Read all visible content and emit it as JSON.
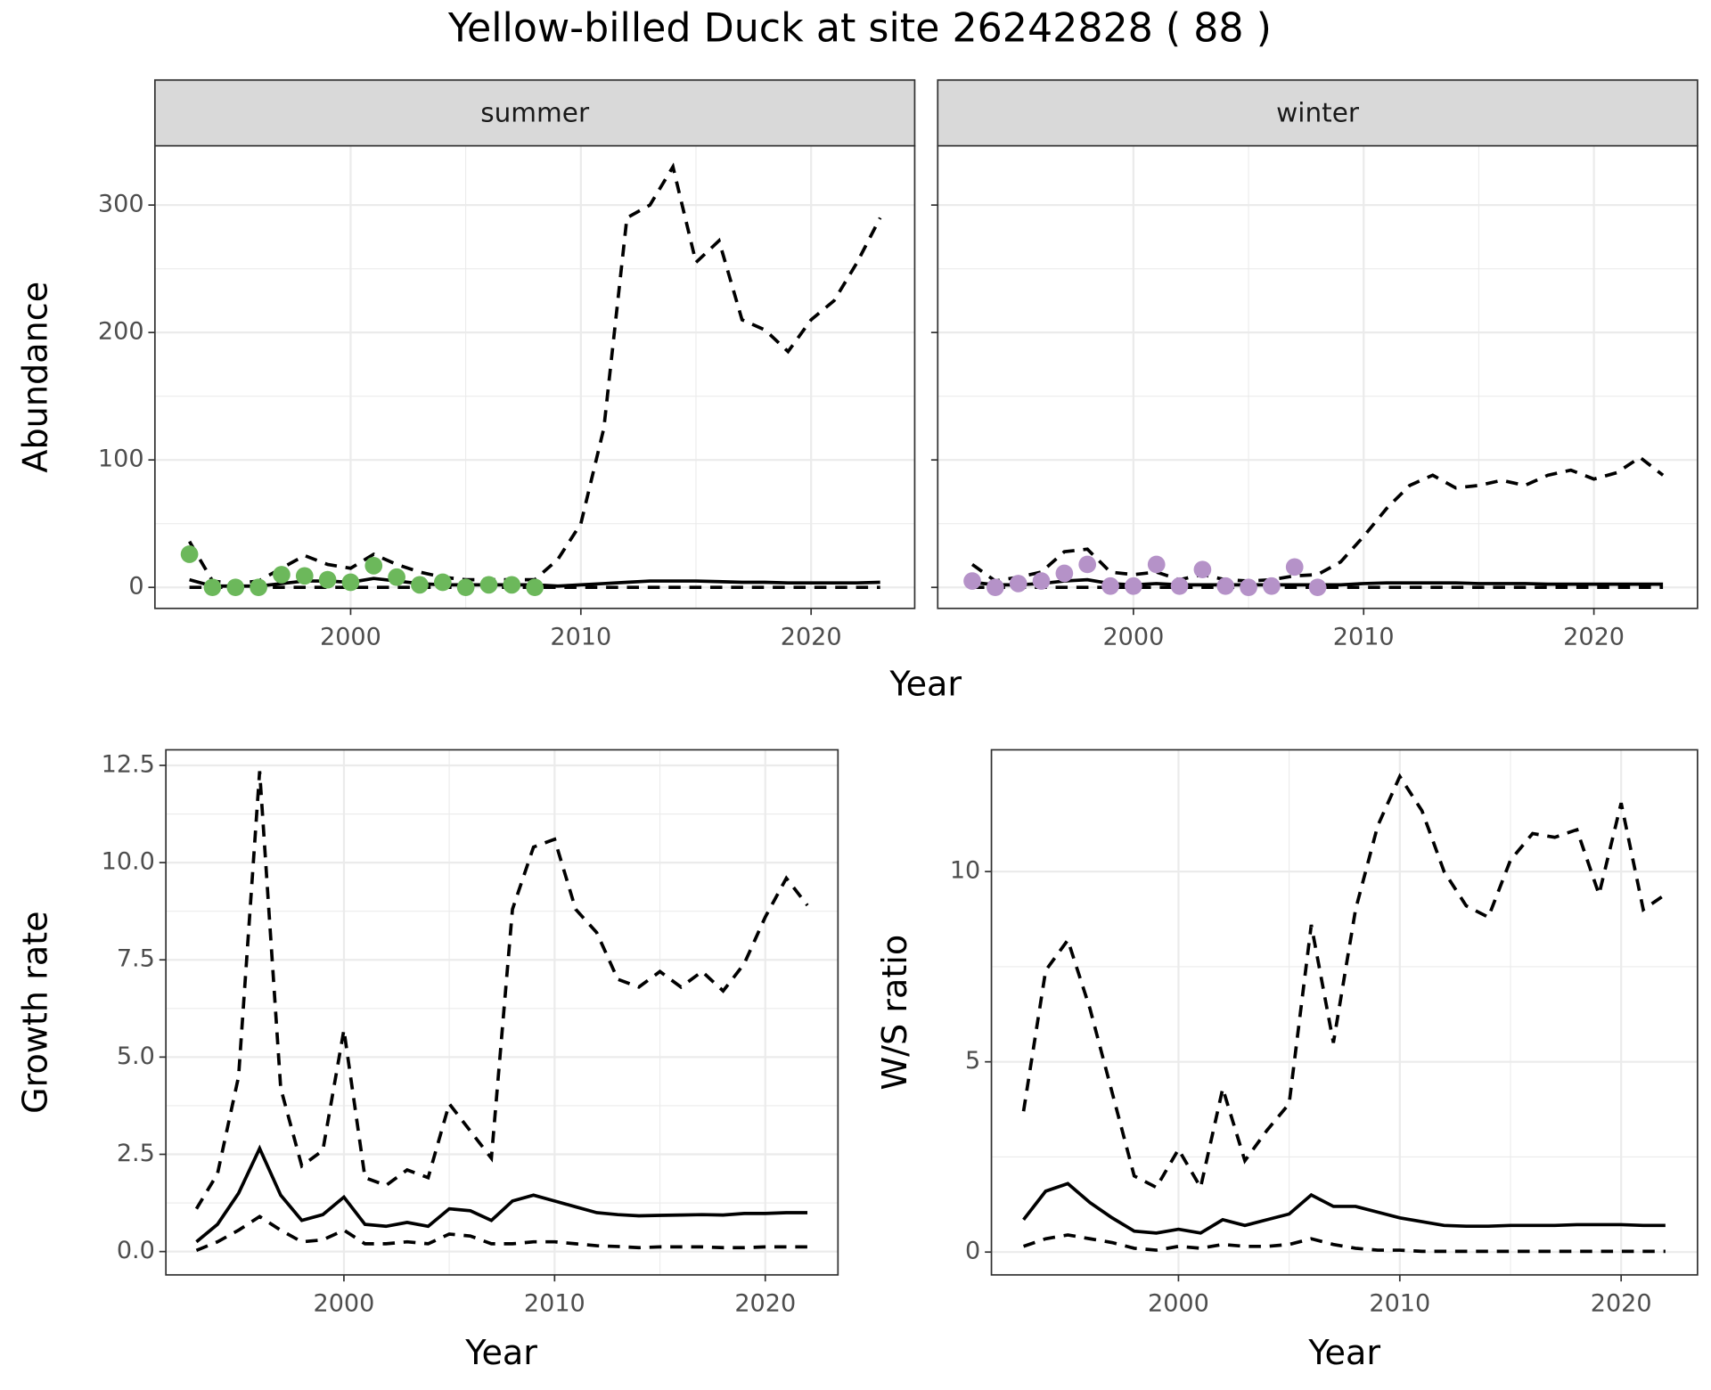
{
  "title": "Yellow-billed Duck at site 26242828 ( 88 )",
  "chart_data": [
    {
      "type": "line",
      "facet": "summer",
      "ylabel": "Abundance",
      "xlabel": "Year",
      "x": [
        1993,
        1994,
        1995,
        1996,
        1997,
        1998,
        1999,
        2000,
        2001,
        2002,
        2003,
        2004,
        2005,
        2006,
        2007,
        2008,
        2009,
        2010,
        2011,
        2012,
        2013,
        2014,
        2015,
        2016,
        2017,
        2018,
        2019,
        2020,
        2021,
        2022,
        2023
      ],
      "xlim": [
        1991.5,
        2024.5
      ],
      "xticks": [
        2000,
        2010,
        2020
      ],
      "ylim": [
        -16.5,
        346.5
      ],
      "yticks": [
        0,
        100,
        200,
        300
      ],
      "grid": true,
      "minor_grid": true,
      "series": [
        {
          "style": "dashed",
          "color": "#000000",
          "values": [
            36,
            5,
            3,
            5,
            15,
            25,
            18,
            15,
            26,
            18,
            12,
            8,
            6,
            6,
            6,
            6,
            22,
            50,
            125,
            290,
            300,
            330,
            255,
            272,
            210,
            202,
            185,
            210,
            225,
            255,
            290
          ]
        },
        {
          "style": "solid",
          "color": "#000000",
          "values": [
            6,
            1,
            1,
            1,
            3,
            5,
            5,
            4,
            7,
            5,
            3,
            2,
            2,
            2,
            2,
            2,
            1,
            2,
            3,
            4,
            5,
            5,
            5,
            4.5,
            4,
            4,
            3.5,
            3.5,
            3.5,
            3.5,
            4
          ]
        },
        {
          "style": "dashed",
          "color": "#000000",
          "values": [
            0,
            0,
            0,
            0,
            0,
            0,
            0,
            0,
            0,
            0,
            0,
            0,
            0,
            0,
            0,
            0,
            0,
            0,
            0,
            0,
            0,
            0,
            0,
            0,
            0,
            0,
            0,
            0,
            0,
            0,
            0
          ]
        },
        {
          "type": "scatter",
          "color": "#6cb85b",
          "x": [
            1993,
            1994,
            1995,
            1996,
            1997,
            1998,
            1999,
            2000,
            2001,
            2002,
            2003,
            2004,
            2005,
            2006,
            2007,
            2008
          ],
          "values": [
            26,
            0,
            0,
            0,
            10,
            9,
            6,
            4,
            17,
            8,
            2,
            4,
            0,
            2,
            2,
            0
          ]
        }
      ]
    },
    {
      "type": "line",
      "facet": "winter",
      "x": [
        1993,
        1994,
        1995,
        1996,
        1997,
        1998,
        1999,
        2000,
        2001,
        2002,
        2003,
        2004,
        2005,
        2006,
        2007,
        2008,
        2009,
        2010,
        2011,
        2012,
        2013,
        2014,
        2015,
        2016,
        2017,
        2018,
        2019,
        2020,
        2021,
        2022,
        2023
      ],
      "xlim": [
        1991.5,
        2024.5
      ],
      "xticks": [
        2000,
        2010,
        2020
      ],
      "ylim": [
        -16.5,
        346.5
      ],
      "yticks": [
        0,
        100,
        200,
        300
      ],
      "grid": true,
      "minor_grid": true,
      "series": [
        {
          "style": "dashed",
          "color": "#000000",
          "values": [
            18,
            5,
            8,
            12,
            28,
            30,
            12,
            10,
            12,
            6,
            10,
            6,
            5,
            6,
            9,
            10,
            20,
            40,
            62,
            80,
            88,
            78,
            80,
            84,
            80,
            88,
            92,
            85,
            90,
            102,
            88
          ]
        },
        {
          "style": "solid",
          "color": "#000000",
          "values": [
            4,
            2,
            2,
            3,
            5,
            6,
            3,
            2,
            3,
            2,
            2,
            2,
            2,
            2,
            2,
            2,
            2,
            3,
            3.5,
            3.5,
            3.5,
            3.5,
            3,
            3,
            3,
            2.5,
            2.5,
            2.5,
            2.5,
            2.5,
            2.5
          ]
        },
        {
          "style": "dashed",
          "color": "#000000",
          "values": [
            0,
            0,
            0,
            0,
            0,
            0,
            0,
            0,
            0,
            0,
            0,
            0,
            0,
            0,
            0,
            0,
            0,
            0,
            0,
            0,
            0,
            0,
            0,
            0,
            0,
            0,
            0,
            0,
            0,
            0,
            0
          ]
        },
        {
          "type": "scatter",
          "color": "#b592c8",
          "x": [
            1993,
            1994,
            1995,
            1996,
            1997,
            1998,
            1999,
            2000,
            2001,
            2002,
            2003,
            2004,
            2005,
            2006,
            2007,
            2008
          ],
          "values": [
            5,
            0,
            3,
            5,
            11,
            18,
            1,
            1,
            18,
            1,
            14,
            1,
            0,
            1,
            16,
            0
          ]
        }
      ]
    },
    {
      "type": "line",
      "ylabel": "Growth rate",
      "xlabel": "Year",
      "x": [
        1993,
        1994,
        1995,
        1996,
        1997,
        1998,
        1999,
        2000,
        2001,
        2002,
        2003,
        2004,
        2005,
        2006,
        2007,
        2008,
        2009,
        2010,
        2011,
        2012,
        2013,
        2014,
        2015,
        2016,
        2017,
        2018,
        2019,
        2020,
        2021,
        2022
      ],
      "xlim": [
        1991.55,
        2023.45
      ],
      "xticks": [
        2000,
        2010,
        2020
      ],
      "ylim": [
        -0.6,
        12.9
      ],
      "yticks": [
        {
          "value": 0,
          "label": "0.0"
        },
        2.5,
        {
          "value": 5,
          "label": "5.0"
        },
        7.5,
        {
          "value": 10,
          "label": "10.0"
        },
        12.5
      ],
      "grid": true,
      "minor_grid": true,
      "series": [
        {
          "style": "dashed",
          "color": "#000000",
          "values": [
            1.1,
            2.0,
            4.5,
            12.35,
            4.2,
            2.2,
            2.6,
            5.7,
            1.9,
            1.7,
            2.1,
            1.9,
            3.8,
            3.1,
            2.4,
            8.8,
            10.4,
            10.6,
            8.8,
            8.2,
            7.0,
            6.8,
            7.2,
            6.8,
            7.2,
            6.7,
            7.4,
            8.6,
            9.6,
            8.9
          ]
        },
        {
          "style": "solid",
          "color": "#000000",
          "values": [
            0.25,
            0.7,
            1.5,
            2.65,
            1.45,
            0.8,
            0.95,
            1.4,
            0.7,
            0.65,
            0.75,
            0.65,
            1.1,
            1.05,
            0.8,
            1.3,
            1.45,
            1.3,
            1.15,
            1.0,
            0.95,
            0.92,
            0.93,
            0.94,
            0.95,
            0.94,
            0.98,
            0.98,
            1.0,
            1.0
          ]
        },
        {
          "style": "dashed",
          "color": "#000000",
          "values": [
            0.03,
            0.25,
            0.55,
            0.9,
            0.55,
            0.25,
            0.3,
            0.55,
            0.2,
            0.2,
            0.25,
            0.2,
            0.45,
            0.4,
            0.2,
            0.2,
            0.25,
            0.25,
            0.2,
            0.15,
            0.13,
            0.1,
            0.12,
            0.12,
            0.12,
            0.1,
            0.1,
            0.12,
            0.12,
            0.12
          ]
        }
      ]
    },
    {
      "type": "line",
      "ylabel": "W/S ratio",
      "xlabel": "Year",
      "x": [
        1993,
        1994,
        1995,
        1996,
        1997,
        1998,
        1999,
        2000,
        2001,
        2002,
        2003,
        2004,
        2005,
        2006,
        2007,
        2008,
        2009,
        2010,
        2011,
        2012,
        2013,
        2014,
        2015,
        2016,
        2017,
        2018,
        2019,
        2020,
        2021,
        2022
      ],
      "xlim": [
        1991.55,
        2023.45
      ],
      "xticks": [
        2000,
        2010,
        2020
      ],
      "ylim": [
        -0.6,
        13.2
      ],
      "yticks": [
        0,
        5,
        10
      ],
      "grid": true,
      "minor_grid": true,
      "series": [
        {
          "style": "dashed",
          "color": "#000000",
          "values": [
            3.7,
            7.4,
            8.2,
            6.4,
            4.2,
            2.0,
            1.7,
            2.7,
            1.7,
            4.3,
            2.4,
            3.2,
            3.9,
            8.6,
            5.5,
            9.0,
            11.2,
            12.5,
            11.6,
            10.0,
            9.1,
            8.8,
            10.3,
            11.0,
            10.9,
            11.1,
            9.4,
            11.8,
            9.0,
            9.4
          ]
        },
        {
          "style": "solid",
          "color": "#000000",
          "values": [
            0.85,
            1.6,
            1.8,
            1.3,
            0.9,
            0.55,
            0.5,
            0.6,
            0.5,
            0.85,
            0.7,
            0.85,
            1.0,
            1.5,
            1.2,
            1.2,
            1.05,
            0.9,
            0.8,
            0.7,
            0.68,
            0.68,
            0.7,
            0.7,
            0.7,
            0.72,
            0.72,
            0.72,
            0.7,
            0.7
          ]
        },
        {
          "style": "dashed",
          "color": "#000000",
          "values": [
            0.15,
            0.35,
            0.45,
            0.35,
            0.25,
            0.1,
            0.05,
            0.15,
            0.1,
            0.2,
            0.15,
            0.15,
            0.2,
            0.35,
            0.2,
            0.1,
            0.05,
            0.05,
            0.02,
            0.02,
            0.02,
            0.02,
            0.02,
            0.02,
            0.02,
            0.02,
            0.02,
            0.02,
            0.02,
            0.02
          ]
        }
      ]
    }
  ]
}
